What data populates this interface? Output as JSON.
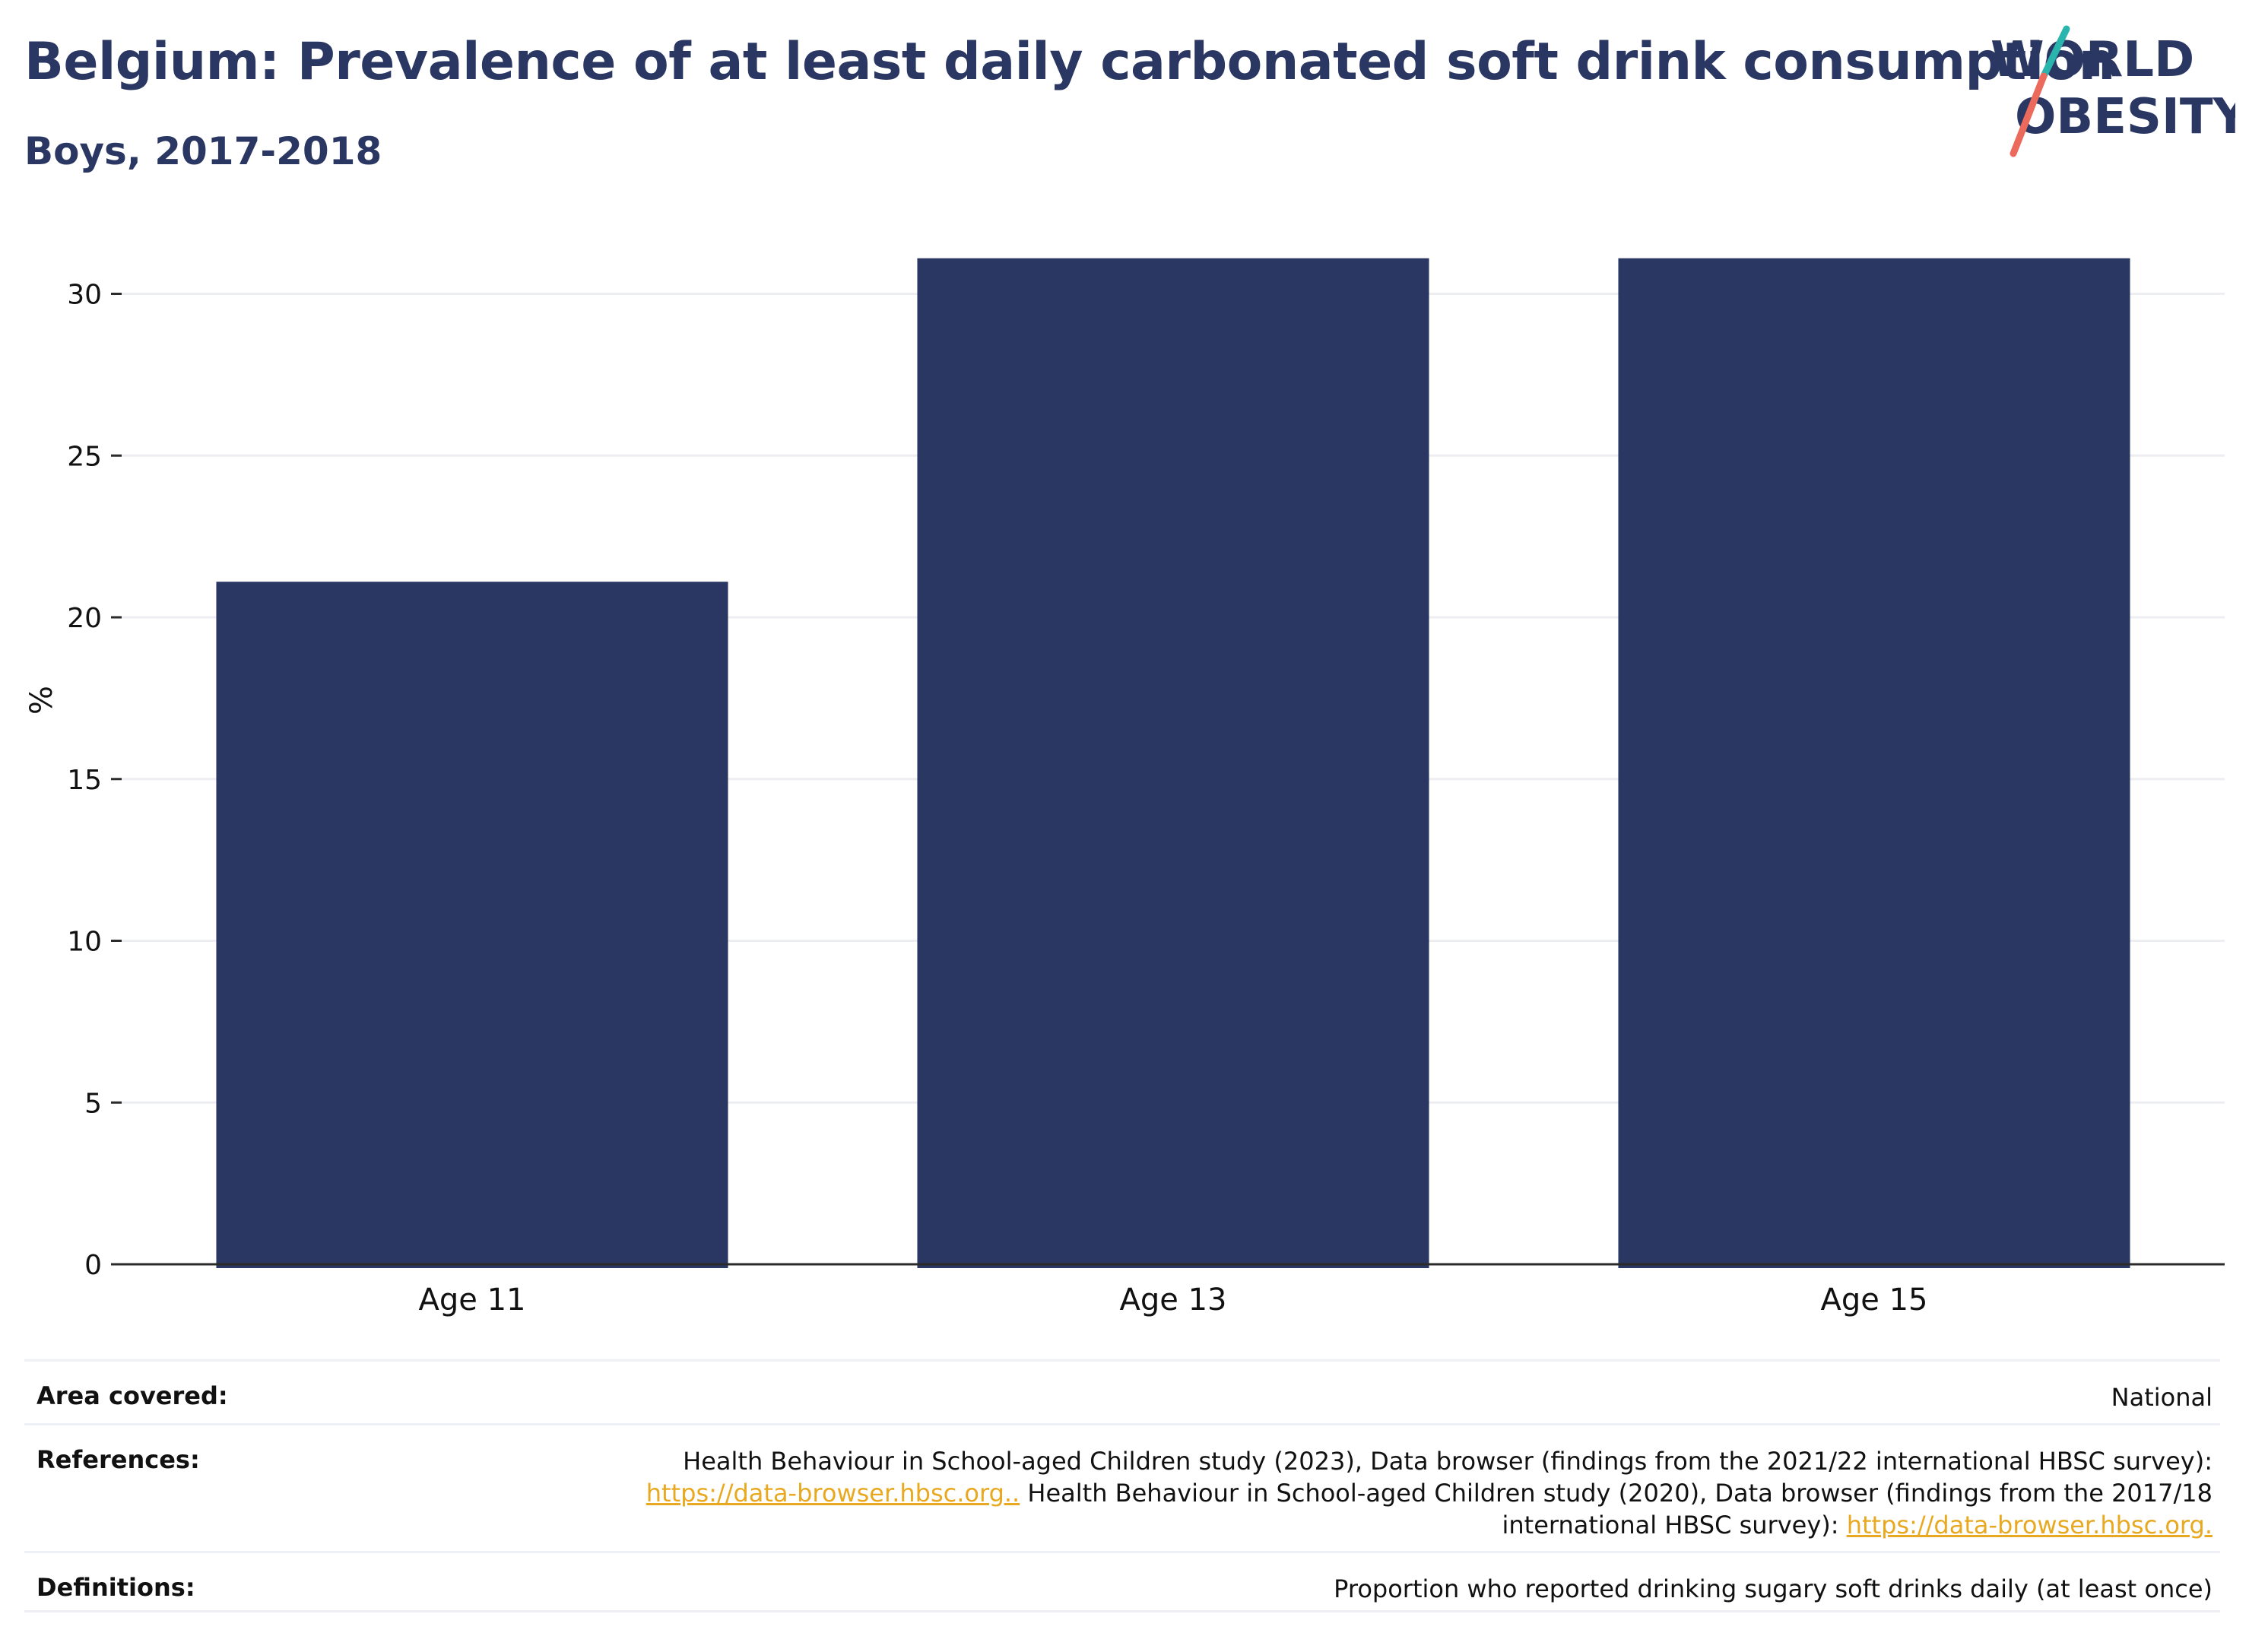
{
  "title": "Belgium: Prevalence of at least daily carbonated soft drink consumption",
  "subtitle": "Boys, 2017-2018",
  "logo": {
    "line1": "WORLD",
    "line2": "OBESITY",
    "colors": {
      "text": "#2a3763",
      "teal": "#29b5ad",
      "coral": "#ec6a5c"
    }
  },
  "colors": {
    "bar": "#2a3763",
    "grid": "#eceef2",
    "axis": "#2a2a2a",
    "link": "#e8a920"
  },
  "chart_data": {
    "type": "bar",
    "categories": [
      "Age 11",
      "Age 13",
      "Age 15"
    ],
    "values": [
      21.1,
      31.1,
      31.1
    ],
    "ylabel": "%",
    "ylim": [
      0,
      32
    ],
    "yticks": [
      0,
      5,
      10,
      15,
      20,
      25,
      30
    ],
    "grid": true
  },
  "info": {
    "area": {
      "label": "Area covered:",
      "value": "National"
    },
    "references": {
      "label": "References:",
      "line1": "Health Behaviour in School-aged Children study (2023), Data browser (findings from the 2021/22 international HBSC survey):",
      "link1": "https://data-browser.hbsc.org..",
      "line2": " Health Behaviour in School-aged Children study (2020), Data browser (findings from the 2017/18",
      "line3": "international HBSC survey): ",
      "link2": "https://data-browser.hbsc.org."
    },
    "definitions": {
      "label": "Definitions:",
      "value": "Proportion who reported drinking sugary soft drinks daily (at least once)"
    }
  }
}
